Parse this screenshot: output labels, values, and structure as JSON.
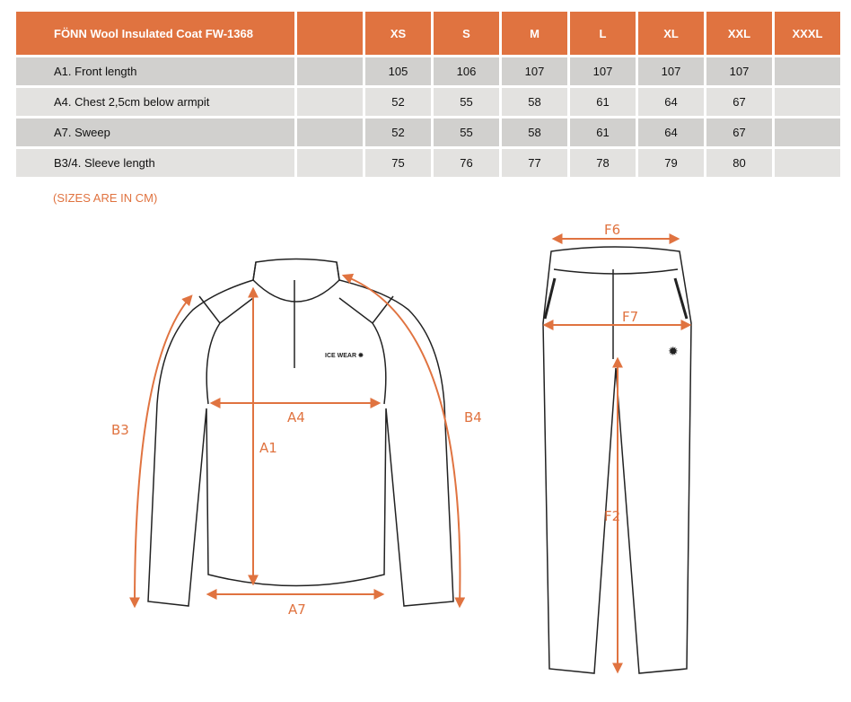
{
  "table": {
    "title": "FÖNN Wool Insulated Coat FW-1368",
    "sizes": [
      "XS",
      "S",
      "M",
      "L",
      "XL",
      "XXL",
      "XXXL"
    ],
    "rows": [
      {
        "label": "A1. Front length",
        "values": [
          "105",
          "106",
          "107",
          "107",
          "107",
          "107",
          ""
        ]
      },
      {
        "label": "A4. Chest 2,5cm below armpit",
        "values": [
          "52",
          "55",
          "58",
          "61",
          "64",
          "67",
          ""
        ]
      },
      {
        "label": "A7. Sweep",
        "values": [
          "52",
          "55",
          "58",
          "61",
          "64",
          "67",
          ""
        ]
      },
      {
        "label": "B3/4. Sleeve length",
        "values": [
          "75",
          "76",
          "77",
          "78",
          "79",
          "80",
          ""
        ]
      }
    ]
  },
  "note": "(SIZES ARE IN CM)",
  "diagram": {
    "labels": {
      "b3": "B3",
      "a4": "A4",
      "a1": "A1",
      "b4": "B4",
      "a7": "A7",
      "f6": "F6",
      "f7": "F7",
      "f2": "F2"
    },
    "logo": "ICE WEAR",
    "accent": "#e07340"
  }
}
